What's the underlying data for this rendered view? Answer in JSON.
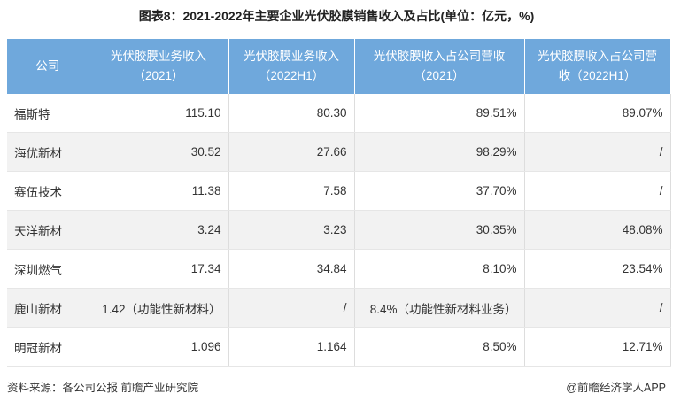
{
  "header": {
    "title": "图表8：2021-2022年主要企业光伏胶膜销售收入及占比(单位：亿元，%)"
  },
  "table": {
    "columns": [
      "公司",
      "光伏胶膜业务收入（2021）",
      "光伏胶膜业务收入（2022H1）",
      "光伏胶膜收入占公司营收（2021）",
      "光伏胶膜收入占公司营收（2022H1）"
    ],
    "rows": [
      [
        "福斯特",
        "115.10",
        "80.30",
        "89.51%",
        "89.07%"
      ],
      [
        "海优新材",
        "30.52",
        "27.66",
        "98.29%",
        "/"
      ],
      [
        "赛伍技术",
        "11.38",
        "7.58",
        "37.70%",
        "/"
      ],
      [
        "天洋新材",
        "3.24",
        "3.23",
        "30.35%",
        "48.08%"
      ],
      [
        "深圳燃气",
        "17.34",
        "34.84",
        "8.10%",
        "23.54%"
      ],
      [
        "鹿山新材",
        "1.42（功能性新材料）",
        "/",
        "8.4%（功能性新材料业务）",
        "/"
      ],
      [
        "明冠新材",
        "1.096",
        "1.164",
        "8.50%",
        "12.71%"
      ]
    ]
  },
  "footer": {
    "source": "资料来源：各公司公报 前瞻产业研究院",
    "brand": "@前瞻经济学人APP"
  }
}
